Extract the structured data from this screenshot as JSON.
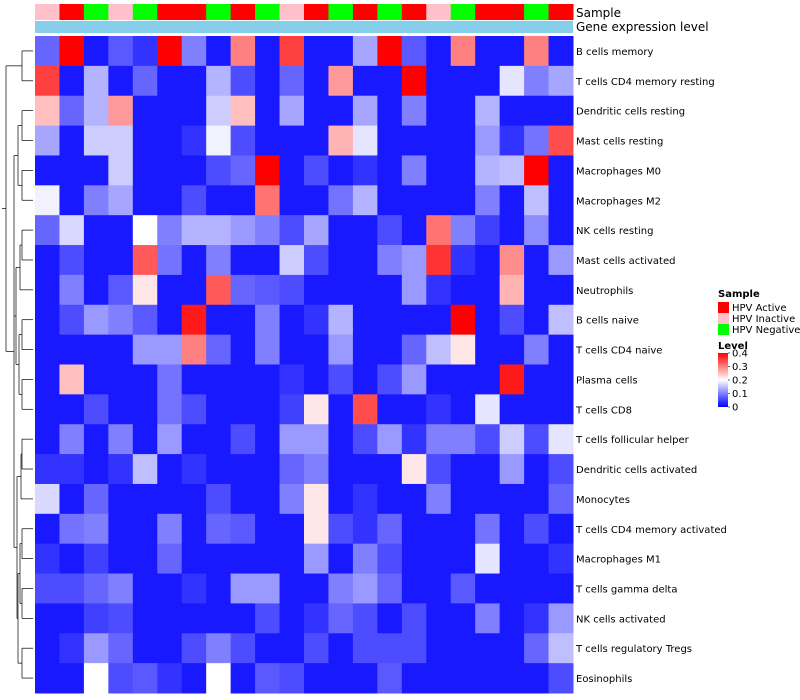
{
  "chart_data": {
    "type": "heatmap",
    "annotation_labels": [
      "Sample",
      "Gene expression level"
    ],
    "sample_groups": [
      "HPV Inactive",
      "HPV Active",
      "HPV Negative",
      "HPV Inactive",
      "HPV Negative",
      "HPV Active",
      "HPV Active",
      "HPV Negative",
      "HPV Active",
      "HPV Negative",
      "HPV Inactive",
      "HPV Active",
      "HPV Negative",
      "HPV Active",
      "HPV Negative",
      "HPV Active",
      "HPV Inactive",
      "HPV Negative",
      "HPV Active",
      "HPV Active",
      "HPV Negative",
      "HPV Active"
    ],
    "rows": [
      "B cells memory",
      "T cells CD4 memory resting",
      "Dendritic cells resting",
      "Mast cells resting",
      "Macrophages M0",
      "Macrophages M2",
      "NK cells resting",
      "Mast cells activated",
      "Neutrophils",
      "B cells naive",
      "T cells CD4 naive",
      "Plasma cells",
      "T cells CD8",
      "T cells follicular helper",
      "Dendritic cells activated",
      "Monocytes",
      "T cells CD4 memory activated",
      "Macrophages M1",
      "T cells gamma delta",
      "NK cells activated",
      "T cells regulatory  Tregs",
      "Eosinophils"
    ],
    "values": [
      [
        0.08,
        0.4,
        0.02,
        0.07,
        0.04,
        0.4,
        0.1,
        0.02,
        0.3,
        0.02,
        0.35,
        0.02,
        0.02,
        0.13,
        0.4,
        0.07,
        0.02,
        0.3,
        0.02,
        0.02,
        0.3,
        0.02
      ],
      [
        0.35,
        0.02,
        0.14,
        0.02,
        0.08,
        0.02,
        0.02,
        0.14,
        0.06,
        0.02,
        0.08,
        0.02,
        0.28,
        0.02,
        0.02,
        0.4,
        0.02,
        0.02,
        0.02,
        0.18,
        0.1,
        0.13
      ],
      [
        0.25,
        0.08,
        0.14,
        0.28,
        0.02,
        0.02,
        0.02,
        0.16,
        0.25,
        0.02,
        0.13,
        0.02,
        0.02,
        0.13,
        0.02,
        0.1,
        0.02,
        0.02,
        0.14,
        0.02,
        0.02,
        0.02
      ],
      [
        0.13,
        0.02,
        0.16,
        0.16,
        0.02,
        0.02,
        0.04,
        0.19,
        0.06,
        0.02,
        0.02,
        0.02,
        0.26,
        0.18,
        0.02,
        0.02,
        0.02,
        0.02,
        0.12,
        0.04,
        0.09,
        0.34
      ],
      [
        0.02,
        0.02,
        0.02,
        0.16,
        0.02,
        0.02,
        0.02,
        0.06,
        0.08,
        0.4,
        0.02,
        0.06,
        0.02,
        0.04,
        0.02,
        0.1,
        0.02,
        0.02,
        0.14,
        0.15,
        0.4,
        0.02
      ],
      [
        0.19,
        0.02,
        0.1,
        0.13,
        0.02,
        0.02,
        0.06,
        0.02,
        0.02,
        0.31,
        0.02,
        0.02,
        0.09,
        0.14,
        0.02,
        0.02,
        0.02,
        0.02,
        0.1,
        0.02,
        0.15,
        0.02
      ],
      [
        0.08,
        0.17,
        0.02,
        0.02,
        0.2,
        0.1,
        0.14,
        0.14,
        0.12,
        0.1,
        0.06,
        0.13,
        0.02,
        0.02,
        0.06,
        0.02,
        0.31,
        0.1,
        0.05,
        0.02,
        0.11,
        0.02
      ],
      [
        0.02,
        0.06,
        0.02,
        0.02,
        0.33,
        0.09,
        0.02,
        0.1,
        0.02,
        0.02,
        0.16,
        0.06,
        0.02,
        0.02,
        0.1,
        0.12,
        0.36,
        0.04,
        0.02,
        0.29,
        0.02,
        0.12
      ],
      [
        0.02,
        0.1,
        0.02,
        0.07,
        0.22,
        0.02,
        0.02,
        0.33,
        0.08,
        0.07,
        0.06,
        0.02,
        0.02,
        0.02,
        0.02,
        0.12,
        0.04,
        0.02,
        0.02,
        0.26,
        0.02,
        0.02
      ],
      [
        0.02,
        0.06,
        0.12,
        0.1,
        0.07,
        0.02,
        0.38,
        0.02,
        0.02,
        0.1,
        0.02,
        0.04,
        0.14,
        0.02,
        0.02,
        0.02,
        0.02,
        0.4,
        0.02,
        0.06,
        0.02,
        0.15
      ],
      [
        0.02,
        0.02,
        0.02,
        0.02,
        0.12,
        0.12,
        0.3,
        0.08,
        0.02,
        0.1,
        0.02,
        0.02,
        0.12,
        0.02,
        0.02,
        0.08,
        0.15,
        0.22,
        0.02,
        0.02,
        0.1,
        0.02
      ],
      [
        0.02,
        0.25,
        0.02,
        0.02,
        0.02,
        0.09,
        0.02,
        0.02,
        0.02,
        0.02,
        0.04,
        0.02,
        0.06,
        0.02,
        0.06,
        0.12,
        0.02,
        0.02,
        0.02,
        0.38,
        0.02,
        0.02
      ],
      [
        0.02,
        0.02,
        0.06,
        0.02,
        0.02,
        0.09,
        0.06,
        0.02,
        0.02,
        0.02,
        0.05,
        0.22,
        0.02,
        0.34,
        0.02,
        0.02,
        0.04,
        0.02,
        0.18,
        0.02,
        0.02,
        0.02
      ],
      [
        0.02,
        0.1,
        0.02,
        0.1,
        0.02,
        0.12,
        0.02,
        0.02,
        0.06,
        0.02,
        0.12,
        0.12,
        0.02,
        0.06,
        0.12,
        0.04,
        0.1,
        0.1,
        0.06,
        0.16,
        0.06,
        0.18
      ],
      [
        0.04,
        0.04,
        0.02,
        0.04,
        0.15,
        0.02,
        0.04,
        0.02,
        0.02,
        0.02,
        0.08,
        0.1,
        0.02,
        0.02,
        0.02,
        0.22,
        0.06,
        0.02,
        0.02,
        0.12,
        0.02,
        0.06
      ],
      [
        0.17,
        0.02,
        0.08,
        0.02,
        0.02,
        0.02,
        0.02,
        0.06,
        0.02,
        0.02,
        0.1,
        0.22,
        0.02,
        0.04,
        0.02,
        0.02,
        0.1,
        0.02,
        0.02,
        0.02,
        0.02,
        0.08
      ],
      [
        0.02,
        0.09,
        0.1,
        0.02,
        0.02,
        0.1,
        0.02,
        0.08,
        0.07,
        0.02,
        0.02,
        0.22,
        0.06,
        0.04,
        0.08,
        0.02,
        0.02,
        0.02,
        0.09,
        0.02,
        0.06,
        0.02
      ],
      [
        0.04,
        0.02,
        0.05,
        0.02,
        0.02,
        0.08,
        0.02,
        0.02,
        0.02,
        0.02,
        0.02,
        0.12,
        0.02,
        0.1,
        0.06,
        0.02,
        0.02,
        0.02,
        0.18,
        0.02,
        0.02,
        0.04
      ],
      [
        0.06,
        0.06,
        0.08,
        0.1,
        0.02,
        0.02,
        0.04,
        0.02,
        0.12,
        0.12,
        0.02,
        0.02,
        0.1,
        0.12,
        0.08,
        0.02,
        0.02,
        0.07,
        0.02,
        0.02,
        0.02,
        0.02
      ],
      [
        0.02,
        0.02,
        0.05,
        0.06,
        0.02,
        0.02,
        0.02,
        0.02,
        0.02,
        0.06,
        0.02,
        0.04,
        0.08,
        0.06,
        0.02,
        0.06,
        0.02,
        0.02,
        0.1,
        0.02,
        0.04,
        0.12
      ],
      [
        0.02,
        0.04,
        0.12,
        0.08,
        0.02,
        0.02,
        0.06,
        0.1,
        0.06,
        0.02,
        0.02,
        0.06,
        0.02,
        0.06,
        0.06,
        0.06,
        0.02,
        0.02,
        0.02,
        0.02,
        0.08,
        0.15
      ],
      [
        0.02,
        0.02,
        0.2,
        0.06,
        0.07,
        0.04,
        0.02,
        0.2,
        0.02,
        0.07,
        0.06,
        0.02,
        0.02,
        0.02,
        0.07,
        0.02,
        0.02,
        0.02,
        0.02,
        0.02,
        0.02,
        0.06
      ]
    ],
    "color_range": [
      0,
      0.4
    ],
    "color_low": "#0000ff",
    "color_mid": "#ffffff",
    "color_high": "#ff0000",
    "legend": {
      "sample_title": "Sample",
      "sample_items": [
        {
          "label": "HPV Active",
          "color": "#ff0000"
        },
        {
          "label": "HPV Inactive",
          "color": "#ffc0cb"
        },
        {
          "label": "HPV Negative",
          "color": "#00ff00"
        }
      ],
      "level_title": "Level",
      "level_ticks": [
        "0.4",
        "0.3",
        "0.2",
        "0.1",
        "0"
      ],
      "level_tick_values": [
        0.4,
        0.3,
        0.2,
        0.1,
        0
      ]
    },
    "expression_bar_color": "#87ceeb"
  }
}
